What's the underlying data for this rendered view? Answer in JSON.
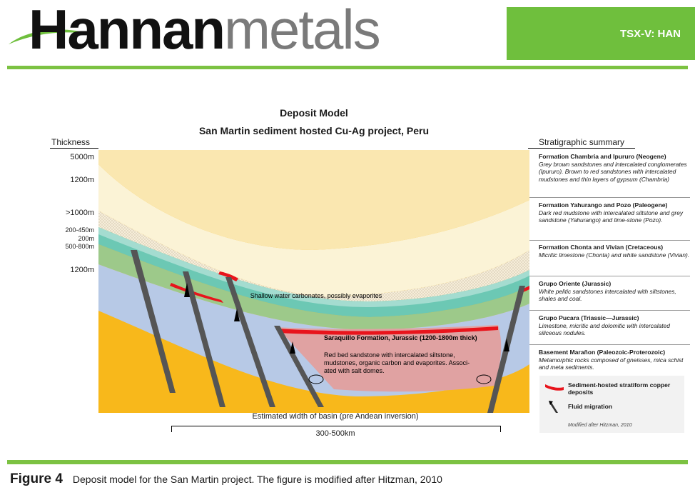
{
  "header": {
    "logo_part1": "Hannan",
    "logo_part2": "metals",
    "ticker": "TSX-V: HAN"
  },
  "figure": {
    "title_line1": "Deposit Model",
    "title_line2": "San Martin sediment hosted Cu-Ag project, Peru",
    "left_column_header": "Thickness",
    "right_column_header": "Stratigraphic summary",
    "thickness_labels": [
      "5000m",
      "1200m",
      ">1000m",
      "200-450m",
      "200m",
      "500-800m",
      "1200m"
    ],
    "diagram_labels": {
      "carbonates": "Shallow water carbonates, possibly evaporites",
      "saraquillo_title": "Saraquillo Formation, Jurassic (1200-1800m thick)",
      "saraquillo_desc_1": "Red bed sandstone with intercalated siltstone,",
      "saraquillo_desc_2": "mudstones, organic carbon  and evaporites. Associ-",
      "saraquillo_desc_3": "ated with salt domes."
    },
    "layer_colors": {
      "neogene": "#fae7b0",
      "paleogene": "#fbf3d6",
      "cretaceous_teal": "#6cc8b4",
      "jurassic_green": "#9dc98a",
      "triassic_blue": "#b7c9e6",
      "basement": "#f8b81b",
      "saraquillo": "#e0a2a2",
      "copper": "#e8141c"
    },
    "stratigraphy": [
      {
        "name": "Formation Chambria and Ipururo (Neogene)",
        "desc": "Grey brown sandstones and intercalated conglomerates (Ipururo). Brown to red sandstones with intercalated mudstones and thin layers of gypsum (Chambria)"
      },
      {
        "name": "Formation Yahurango and Pozo (Paleogene)",
        "desc": "Dark red mudstone with intercalated siltstone and grey sandstone (Yahurango) and lime-stone (Pozo)."
      },
      {
        "name": "Formation Chonta and Vivian (Cretaceous)",
        "desc": "Micritic limestone (Chonta)  and white sandstone (Vivian)."
      },
      {
        "name": "Grupo Oriente (Jurassic)",
        "desc": "White pelitic sandstones intercalated with siltstones, shales and coal."
      },
      {
        "name": "Grupo Pucara (Triassic—Jurassic)",
        "desc": "Limestone, micritic and dolomitic with intercalated siliceous nodules."
      },
      {
        "name": "Basement Marañon (Paleozoic-Proterozoic)",
        "desc": "Metamorphic rocks composed of gneisses, mica schist and meta sediments."
      }
    ],
    "legend": {
      "copper": "Sediment-hosted stratiform copper deposits",
      "fluid": "Fluid migration",
      "note": "Modified after Hitzman, 2010"
    },
    "basin_width_label": "Estimated width of basin (pre Andean inversion)",
    "basin_width_value": "300-500km"
  },
  "caption": {
    "label": "Figure 4",
    "text": "Deposit model for the San Martin project. The figure is modified after Hitzman, 2010"
  }
}
